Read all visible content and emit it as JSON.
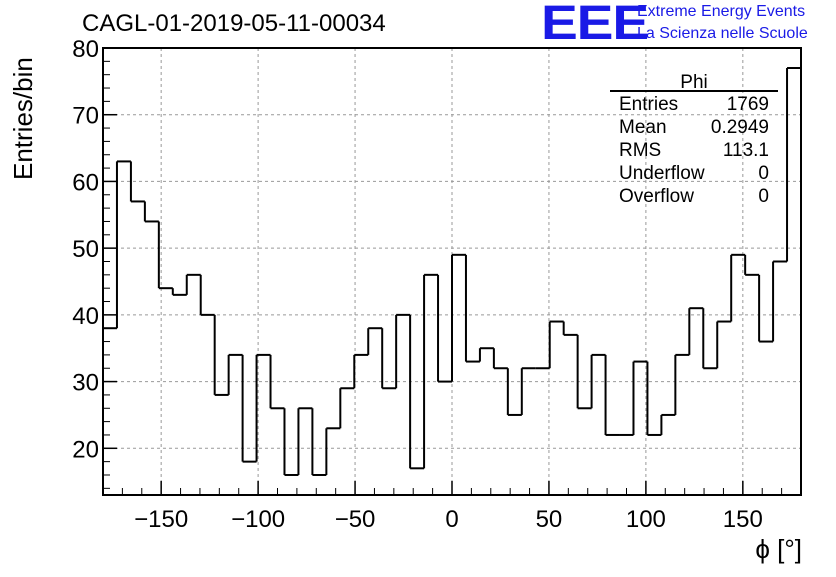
{
  "run_title": "CAGL-01-2019-05-11-00034",
  "logo": {
    "mark": "EEE",
    "line1": "Extreme Energy Events",
    "line2": "La Scienza nelle Scuole",
    "color": "#1a1ae6"
  },
  "stats_box": {
    "title": "Phi",
    "rows": [
      {
        "label": "Entries",
        "value": "1769"
      },
      {
        "label": "Mean",
        "value": "0.2949"
      },
      {
        "label": "RMS",
        "value": "113.1"
      },
      {
        "label": "Underflow",
        "value": "0"
      },
      {
        "label": "Overflow",
        "value": "0"
      }
    ]
  },
  "chart_data": {
    "type": "histogram",
    "title": "CAGL-01-2019-05-11-00034",
    "xlabel": "ϕ [°]",
    "ylabel": "Entries/bin",
    "xlim": [
      -180,
      180
    ],
    "ylim": [
      13,
      80
    ],
    "bin_width": 7.2,
    "xticks": [
      -150,
      -100,
      -50,
      0,
      50,
      100,
      150
    ],
    "yticks": [
      20,
      30,
      40,
      50,
      60,
      70,
      80
    ],
    "grid": true,
    "values": [
      38,
      63,
      57,
      54,
      44,
      43,
      46,
      40,
      28,
      34,
      18,
      34,
      26,
      16,
      26,
      16,
      23,
      29,
      34,
      38,
      29,
      40,
      17,
      46,
      30,
      49,
      33,
      35,
      32,
      25,
      32,
      32,
      39,
      37,
      26,
      34,
      22,
      22,
      33,
      22,
      25,
      34,
      41,
      32,
      39,
      49,
      46,
      36,
      48,
      77
    ]
  }
}
